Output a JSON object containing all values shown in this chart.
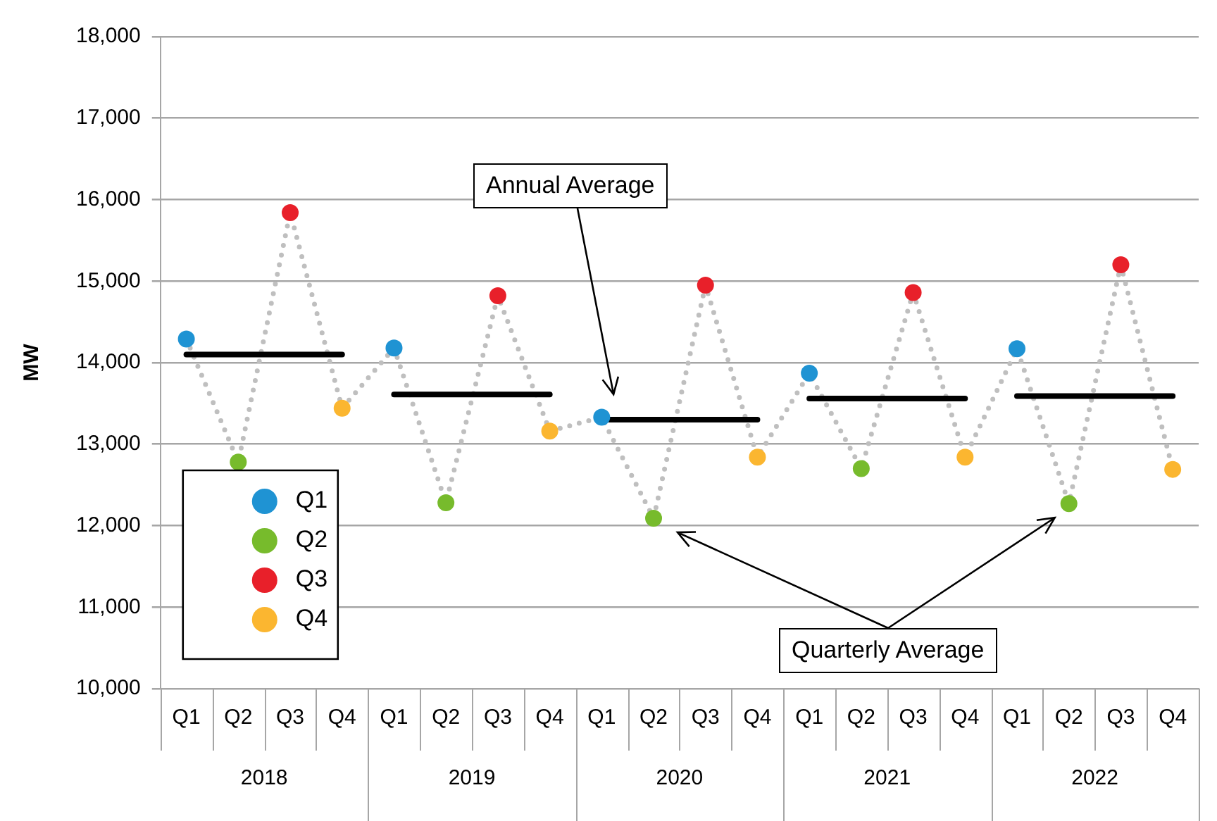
{
  "chart_data": {
    "type": "line",
    "ylabel": "MW",
    "categories": [
      "Q1",
      "Q2",
      "Q3",
      "Q4",
      "Q1",
      "Q2",
      "Q3",
      "Q4",
      "Q1",
      "Q2",
      "Q3",
      "Q4",
      "Q1",
      "Q2",
      "Q3",
      "Q4",
      "Q1",
      "Q2",
      "Q3",
      "Q4"
    ],
    "ylim": [
      10000,
      18000
    ],
    "yticks": [
      {
        "value": 10000,
        "label": "10,000"
      },
      {
        "value": 11000,
        "label": "11,000"
      },
      {
        "value": 12000,
        "label": "12,000"
      },
      {
        "value": 13000,
        "label": "13,000"
      },
      {
        "value": 14000,
        "label": "14,000"
      },
      {
        "value": 15000,
        "label": "15,000"
      },
      {
        "value": 16000,
        "label": "16,000"
      },
      {
        "value": 17000,
        "label": "17,000"
      },
      {
        "value": 18000,
        "label": "18,000"
      }
    ],
    "grid": "y",
    "legend": "bottom left",
    "annotations": [
      "2018",
      "2019",
      "2020",
      "2021",
      "2022",
      "Annual Average",
      "Quarterly Average"
    ],
    "series": [
      {
        "type": "line",
        "color": "#bfbfbf",
        "line_style": "dotted",
        "marker": "none",
        "values": [
          14290,
          12780,
          15840,
          13440,
          14180,
          12280,
          14820,
          13160,
          13330,
          12090,
          14950,
          12840,
          13870,
          12700,
          14860,
          12840,
          14170,
          12270,
          15200,
          12690
        ]
      },
      {
        "type": "scatter",
        "name": "Q1",
        "color": "#1f93d3",
        "marker": "circle",
        "values": [
          14290,
          null,
          null,
          null,
          14180,
          null,
          null,
          null,
          13330,
          null,
          null,
          null,
          13870,
          null,
          null,
          null,
          14170,
          null,
          null,
          null
        ]
      },
      {
        "type": "scatter",
        "name": "Q2",
        "color": "#77bb2c",
        "marker": "circle",
        "values": [
          null,
          12780,
          null,
          null,
          null,
          12280,
          null,
          null,
          null,
          12090,
          null,
          null,
          null,
          12700,
          null,
          null,
          null,
          12270,
          null,
          null
        ]
      },
      {
        "type": "scatter",
        "name": "Q3",
        "color": "#e8202a",
        "marker": "circle",
        "values": [
          null,
          null,
          15840,
          null,
          null,
          null,
          14820,
          null,
          null,
          null,
          14950,
          null,
          null,
          null,
          14860,
          null,
          null,
          null,
          15200,
          null
        ]
      },
      {
        "type": "scatter",
        "name": "Q4",
        "color": "#fbb630",
        "marker": "circle",
        "values": [
          null,
          null,
          null,
          13440,
          null,
          null,
          null,
          13160,
          null,
          null,
          null,
          12840,
          null,
          null,
          null,
          12840,
          null,
          null,
          null,
          12690
        ]
      },
      {
        "type": "line",
        "color": "#000000",
        "line_style": "solid",
        "marker": "none",
        "values": [
          14100,
          14100,
          14100,
          14100,
          null,
          null,
          null,
          null,
          null,
          null,
          null,
          null,
          null,
          null,
          null,
          null,
          null,
          null,
          null,
          null
        ]
      },
      {
        "type": "line",
        "color": "#000000",
        "line_style": "solid",
        "marker": "none",
        "values": [
          null,
          null,
          null,
          null,
          13610,
          13610,
          13610,
          13610,
          null,
          null,
          null,
          null,
          null,
          null,
          null,
          null,
          null,
          null,
          null,
          null
        ]
      },
      {
        "type": "line",
        "color": "#000000",
        "line_style": "solid",
        "marker": "none",
        "values": [
          null,
          null,
          null,
          null,
          null,
          null,
          null,
          null,
          13300,
          13300,
          13300,
          13300,
          null,
          null,
          null,
          null,
          null,
          null,
          null,
          null
        ]
      },
      {
        "type": "line",
        "color": "#000000",
        "line_style": "solid",
        "marker": "none",
        "values": [
          null,
          null,
          null,
          null,
          null,
          null,
          null,
          null,
          null,
          null,
          null,
          null,
          13560,
          13560,
          13560,
          13560,
          null,
          null,
          null,
          null
        ]
      },
      {
        "type": "line",
        "color": "#000000",
        "line_style": "solid",
        "marker": "none",
        "values": [
          null,
          null,
          null,
          null,
          null,
          null,
          null,
          null,
          null,
          null,
          null,
          null,
          null,
          null,
          null,
          null,
          13590,
          13590,
          13590,
          13590
        ]
      }
    ]
  }
}
